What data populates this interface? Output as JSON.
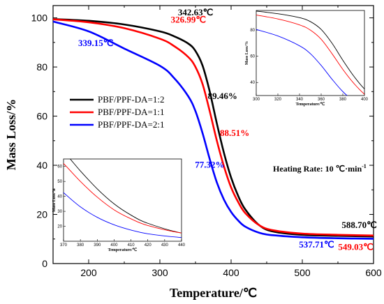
{
  "chart_data": {
    "type": "line",
    "xlabel": "Temperature/℃",
    "ylabel": "Mass Loss/%",
    "xlim": [
      150,
      600
    ],
    "ylim": [
      0,
      105
    ],
    "xticks": [
      200,
      300,
      400,
      500,
      600
    ],
    "yticks": [
      0,
      20,
      40,
      60,
      80,
      100
    ],
    "legend_position": "middle-left",
    "series": [
      {
        "name": "PBF/PPF-DA=1:2",
        "color": "#000000",
        "x": [
          150,
          200,
          250,
          300,
          320,
          340,
          350,
          360,
          370,
          380,
          390,
          400,
          410,
          420,
          440,
          460,
          500,
          550,
          600
        ],
        "y": [
          99.5,
          98.8,
          97.3,
          94.5,
          92.5,
          89.5,
          86.5,
          80.5,
          70,
          57,
          45,
          35,
          27.5,
          22,
          15.5,
          13,
          11.7,
          11.3,
          11
        ]
      },
      {
        "name": "PBF/PPF-DA=1:1",
        "color": "#ff0000",
        "x": [
          150,
          200,
          250,
          300,
          320,
          340,
          350,
          360,
          370,
          380,
          390,
          400,
          410,
          420,
          440,
          460,
          500,
          550,
          600
        ],
        "y": [
          99.4,
          98.2,
          95.8,
          91.5,
          88.5,
          84,
          80,
          73,
          62,
          50,
          39.5,
          31,
          25,
          20.5,
          15.5,
          13.5,
          12.2,
          11.7,
          11.4
        ]
      },
      {
        "name": "PBF/PPF-DA=2:1",
        "color": "#0000ff",
        "x": [
          150,
          200,
          250,
          300,
          320,
          340,
          350,
          360,
          370,
          380,
          390,
          400,
          410,
          420,
          440,
          460,
          500,
          550,
          600
        ],
        "y": [
          98.5,
          94.5,
          87.5,
          80.5,
          75.5,
          68,
          62,
          53,
          42.5,
          33,
          26,
          21,
          17.5,
          15,
          12.5,
          11.5,
          10.7,
          10.3,
          10.1
        ]
      }
    ],
    "annotations": [
      {
        "text": "342.63℃",
        "color": "#000000",
        "x": 350,
        "y": 101
      },
      {
        "text": "326.99℃",
        "color": "#ff0000",
        "x": 340,
        "y": 98
      },
      {
        "text": "339.15℃",
        "color": "#0000ff",
        "x": 210,
        "y": 88.5
      },
      {
        "text": "89.46%",
        "color": "#000000",
        "x": 388,
        "y": 67
      },
      {
        "text": "88.51%",
        "color": "#ff0000",
        "x": 405,
        "y": 52
      },
      {
        "text": "77.32%",
        "color": "#0000ff",
        "x": 370,
        "y": 39
      },
      {
        "text": "588.70℃",
        "color": "#000000",
        "x": 580,
        "y": 14.5
      },
      {
        "text": "537.71℃",
        "color": "#0000ff",
        "x": 520,
        "y": 6.5
      },
      {
        "text": "549.03℃",
        "color": "#ff0000",
        "x": 575,
        "y": 5.5
      }
    ],
    "heating_rate": {
      "text_main": "Heating Rate: 10 ℃·min",
      "text_sup": "-1"
    },
    "inset_top": {
      "xlim": [
        300,
        400
      ],
      "ylim": [
        30,
        95
      ],
      "xticks": [
        300,
        320,
        340,
        360,
        380,
        400
      ],
      "yticks": [
        40,
        60,
        80
      ],
      "xlabel": "Temperature/℃",
      "ylabel": "Mass Loss/%"
    },
    "inset_bottom": {
      "xlim": [
        370,
        440
      ],
      "ylim": [
        10,
        65
      ],
      "xticks": [
        370,
        380,
        390,
        400,
        410,
        420,
        430,
        440
      ],
      "yticks": [
        20,
        30,
        40,
        50,
        60
      ],
      "xlabel": "Temperature/℃",
      "ylabel": "Mass Loss/%"
    }
  }
}
